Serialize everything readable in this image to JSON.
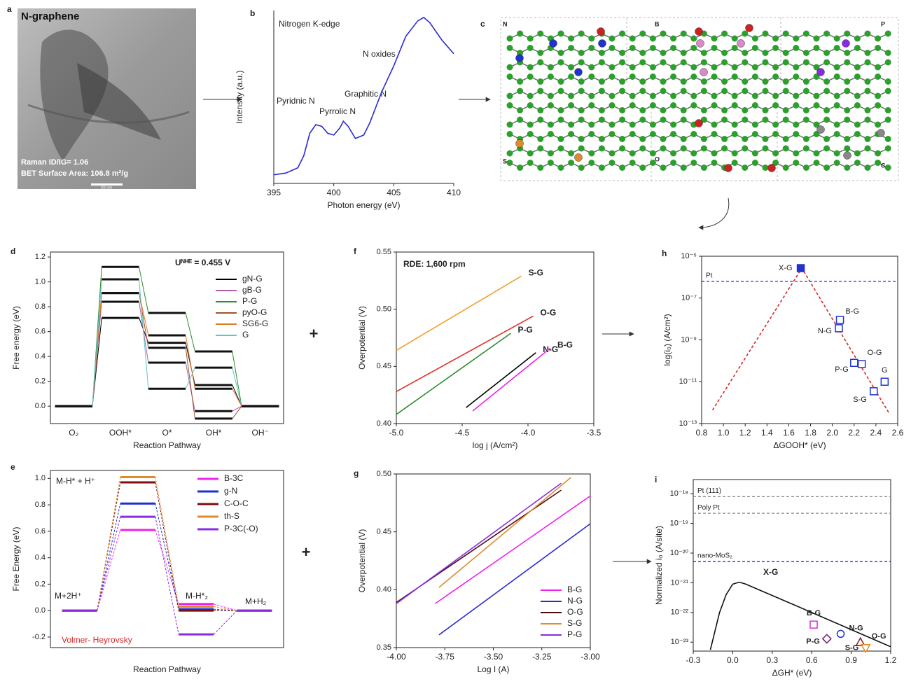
{
  "image_panel": {
    "label": "a",
    "title": "N-graphene",
    "raman": "Raman ID/IG= 1.06",
    "bet": "BET Surface Area: 106.8 m²/g",
    "scale_bar": "200 nm"
  },
  "structure_panel": {
    "label": "c",
    "dopants": [
      "N",
      "B",
      "P",
      "S",
      "O",
      "C"
    ]
  },
  "operators": [
    "+",
    "+"
  ],
  "chart_data": [
    {
      "panel": "b",
      "type": "line",
      "title": "Nitrogen K-edge",
      "x_label": "Photon energy (eV)",
      "y_label": "Intensity (a.u.)",
      "xlim": [
        395,
        410
      ],
      "xticks": [
        395,
        400,
        405,
        410
      ],
      "ylim": [
        0,
        1
      ],
      "series": [
        {
          "color": "#2a2ad4",
          "x": [
            395,
            396,
            397,
            397.5,
            398,
            398.5,
            399,
            399.5,
            400,
            400.5,
            400.8,
            401.2,
            401.8,
            402.5,
            403,
            404,
            405,
            406,
            407,
            407.5,
            408,
            409,
            410
          ],
          "values": [
            0.05,
            0.06,
            0.09,
            0.16,
            0.29,
            0.34,
            0.33,
            0.29,
            0.28,
            0.32,
            0.36,
            0.33,
            0.26,
            0.28,
            0.35,
            0.53,
            0.68,
            0.85,
            0.94,
            0.96,
            0.93,
            0.83,
            0.75
          ]
        }
      ],
      "annotations": [
        "Pyridnic N",
        "Pyrrolic N",
        "Graphitic N",
        "N oxides"
      ]
    },
    {
      "panel": "d",
      "type": "step",
      "title": "Uᴺᴴᴱ = 0.455 V",
      "x_label": "Reaction Pathway",
      "y_label": "Free energy (eV)",
      "categories": [
        "O₂",
        "OOH*",
        "O*",
        "OH*",
        "OH⁻"
      ],
      "ylim": [
        -0.14,
        1.24
      ],
      "yticks": [
        {
          "value": 0,
          "label": "0.0"
        },
        0.2,
        0.4,
        0.6,
        0.8,
        {
          "value": 1,
          "label": "1.0"
        },
        1.2
      ],
      "level_color": "#111111",
      "legend": "upper right",
      "series": [
        {
          "name": "gN-G",
          "color": "#000000",
          "values": [
            0,
            0.71,
            0.51,
            0.17,
            0
          ]
        },
        {
          "name": "gB-G",
          "color": "#b05fb0",
          "values": [
            0,
            0.84,
            0.35,
            -0.04,
            0
          ]
        },
        {
          "name": "P-G",
          "color": "#2e8b2e",
          "values": [
            0,
            1.12,
            0.75,
            0.44,
            0
          ]
        },
        {
          "name": "pyO-G",
          "color": "#a0522d",
          "values": [
            0,
            0.91,
            0.47,
            -0.1,
            0
          ]
        },
        {
          "name": "SG6-G",
          "color": "#e07b20",
          "values": [
            0,
            0.91,
            0.57,
            0.14,
            0
          ]
        },
        {
          "name": "G",
          "color": "#5fc8c8",
          "values": [
            0,
            1.02,
            0.14,
            0.31,
            0
          ]
        }
      ]
    },
    {
      "panel": "e",
      "type": "step",
      "x_label": "Reaction Pathway",
      "y_label": "Free Energy (eV)",
      "categories": [
        "M+2H⁺",
        "M-H* + H⁺",
        "M-H*₂",
        "M+H₂"
      ],
      "ylim": [
        -0.28,
        1.06
      ],
      "yticks": [
        -0.2,
        {
          "value": 0,
          "label": "0.0"
        },
        0.2,
        0.4,
        0.6,
        0.8,
        {
          "value": 1,
          "label": "1.0"
        }
      ],
      "dashed": true,
      "legend": "upper right",
      "annotations": [
        "Volmer- Heyrovsky"
      ],
      "series": [
        {
          "name": "B-3C",
          "color": "#ee22ee",
          "values": [
            0,
            0.61,
            0.05,
            0
          ]
        },
        {
          "name": "g-N",
          "color": "#1a2fd6",
          "values": [
            0,
            0.81,
            0.01,
            0
          ]
        },
        {
          "name": "C-O-C",
          "color": "#7a0f0f",
          "values": [
            0,
            0.97,
            0,
            0
          ]
        },
        {
          "name": "th-S",
          "color": "#e08a30",
          "values": [
            0,
            1.01,
            0.03,
            0
          ]
        },
        {
          "name": "P-3C(-O)",
          "color": "#8a2be2",
          "values": [
            0,
            0.71,
            -0.18,
            0
          ]
        }
      ]
    },
    {
      "panel": "f",
      "type": "line",
      "title": "RDE: 1,600 rpm",
      "x_label": "log j (A/cm²)",
      "y_label": "Overpotential (V)",
      "xlim": [
        -5,
        -3.5
      ],
      "xticks": [
        {
          "value": -5,
          "label": "-5.0"
        },
        -4.5,
        {
          "value": -4,
          "label": "-4.0"
        },
        -3.5
      ],
      "ylim": [
        0.4,
        0.55
      ],
      "yticks": [
        {
          "value": 0.4,
          "label": "0.40"
        },
        0.45,
        {
          "value": 0.5,
          "label": "0.50"
        },
        0.55
      ],
      "direct_labels": true,
      "series": [
        {
          "name": "S-G",
          "color": "#f0a030",
          "x": [
            -5,
            -4.05
          ],
          "values": [
            0.464,
            0.529
          ]
        },
        {
          "name": "O-G",
          "color": "#e0302a",
          "x": [
            -5,
            -3.96
          ],
          "values": [
            0.428,
            0.494
          ]
        },
        {
          "name": "P-G",
          "color": "#2e8b2e",
          "x": [
            -5,
            -4.13
          ],
          "values": [
            0.408,
            0.479
          ]
        },
        {
          "name": "N-G",
          "color": "#000000",
          "x": [
            -4.47,
            -3.94
          ],
          "values": [
            0.414,
            0.462
          ]
        },
        {
          "name": "B-G",
          "color": "#ee22ee",
          "x": [
            -4.42,
            -3.83
          ],
          "values": [
            0.411,
            0.466
          ]
        }
      ]
    },
    {
      "panel": "g",
      "type": "line",
      "x_label": "Log I (A)",
      "y_label": "Overpotential (V)",
      "xlim": [
        -4,
        -3
      ],
      "xticks": [
        {
          "value": -4,
          "label": "-4.00"
        },
        -3.75,
        {
          "value": -3.5,
          "label": "-3.50"
        },
        -3.25,
        {
          "value": -3,
          "label": "-3.00"
        }
      ],
      "ylim": [
        0.35,
        0.5
      ],
      "yticks": [
        0.35,
        {
          "value": 0.4,
          "label": "0.40"
        },
        0.45,
        {
          "value": 0.5,
          "label": "0.50"
        }
      ],
      "legend": "lower right",
      "series": [
        {
          "name": "B-G",
          "color": "#ee22ee",
          "x": [
            -3.8,
            -3
          ],
          "values": [
            0.388,
            0.481
          ]
        },
        {
          "name": "N-G",
          "color": "#2a2ad4",
          "x": [
            -3.78,
            -3
          ],
          "values": [
            0.361,
            0.457
          ]
        },
        {
          "name": "O-G",
          "color": "#4a0f0f",
          "x": [
            -4,
            -3.15
          ],
          "values": [
            0.389,
            0.486
          ]
        },
        {
          "name": "S-G",
          "color": "#e08a30",
          "x": [
            -3.78,
            -3.1
          ],
          "values": [
            0.402,
            0.497
          ]
        },
        {
          "name": "P-G",
          "color": "#8a2be2",
          "x": [
            -4,
            -3.15
          ],
          "values": [
            0.388,
            0.492
          ]
        }
      ]
    },
    {
      "panel": "h",
      "type": "scatter",
      "log_y": true,
      "x_label": "ΔGOOH* (eV)",
      "y_label": "log(i₀) (A/cm²)",
      "xlim": [
        0.8,
        2.6
      ],
      "xticks": [
        0.8,
        {
          "value": 1,
          "label": "1.0"
        },
        1.2,
        1.4,
        1.6,
        1.8,
        {
          "value": 2,
          "label": "2.0"
        },
        2.2,
        2.4,
        2.6
      ],
      "ylim": [
        1e-13,
        1e-05
      ],
      "yticks": [
        {
          "value": 1e-13,
          "label": "10⁻¹³"
        },
        {
          "value": 1e-11,
          "label": "10⁻¹¹"
        },
        {
          "value": 1e-09,
          "label": "10⁻⁹"
        },
        {
          "value": 1e-07,
          "label": "10⁻⁷"
        },
        {
          "value": 1e-05,
          "label": "10⁻⁵"
        }
      ],
      "hlines": [
        {
          "label": "Pt",
          "value": 6.3e-07,
          "color": "#1f2fd6"
        }
      ],
      "curve": {
        "color": "#d62728",
        "dashed": true,
        "x": [
          0.9,
          1.72,
          2.52
        ],
        "values": [
          4.4e-13,
          2.7e-06,
          3.2e-13
        ]
      },
      "points": {
        "labels": [
          "X-G",
          "B-G",
          "N-G",
          "O-G",
          "P-G",
          "G",
          "S-G"
        ],
        "x": [
          1.71,
          2.07,
          2.06,
          2.27,
          2.2,
          2.48,
          2.38
        ],
        "values": [
          2.7e-06,
          9e-09,
          3.6e-09,
          7e-11,
          8e-11,
          1e-11,
          3.5e-12
        ],
        "markers": [
          "square",
          "square",
          "square",
          "square",
          "square",
          "square",
          "square"
        ],
        "colors": [
          "#2233cc",
          "#2233cc",
          "#2233cc",
          "#2233cc",
          "#2233cc",
          "#2233cc",
          "#2233cc"
        ],
        "filled": [
          true,
          false,
          false,
          false,
          false,
          false,
          false
        ]
      }
    },
    {
      "panel": "i",
      "type": "scatter",
      "log_y": true,
      "x_label": "ΔGH* (eV)",
      "y_label": "Normalized i₀ (A/site)",
      "xlim": [
        -0.3,
        1.2
      ],
      "xticks": [
        -0.3,
        {
          "value": 0,
          "label": "0.0"
        },
        0.3,
        0.6,
        0.9,
        1.2
      ],
      "ylim": [
        5e-24,
        3e-18
      ],
      "yticks": [
        {
          "value": 1e-23,
          "label": "10⁻²³"
        },
        {
          "value": 1e-22,
          "label": "10⁻²²"
        },
        {
          "value": 1e-21,
          "label": "10⁻²¹"
        },
        {
          "value": 1e-20,
          "label": "10⁻²⁰"
        },
        {
          "value": 1e-19,
          "label": "10⁻¹⁹"
        },
        {
          "value": 1e-18,
          "label": "10⁻¹⁸"
        }
      ],
      "hlines": [
        {
          "label": "Pt (111)",
          "value": 8e-19,
          "color": "#888888"
        },
        {
          "label": "Poly Pt",
          "value": 2.2e-19,
          "color": "#888888"
        },
        {
          "label": "nano-MoS₂",
          "value": 5.2e-21,
          "color": "#1f2fd6"
        }
      ],
      "curve": {
        "color": "#111111",
        "dashed": false,
        "x": [
          -0.17,
          -0.1,
          -0.05,
          0,
          0.05,
          0.1,
          0.2,
          0.6,
          1,
          1.2
        ],
        "values": [
          5.5e-24,
          1e-22,
          4e-22,
          9e-22,
          1.05e-21,
          9e-22,
          5.8e-22,
          1e-22,
          1.7e-23,
          7e-24
        ]
      },
      "annotations": [
        "X-G"
      ],
      "points": {
        "labels": [
          "B-G",
          "N-G",
          "O-G",
          "P-G",
          "S-G"
        ],
        "x": [
          0.615,
          0.82,
          0.97,
          0.715,
          1.01
        ],
        "values": [
          3.9e-23,
          1.9e-23,
          1e-23,
          1.3e-23,
          6.3e-24
        ],
        "markers": [
          "square",
          "circle",
          "triangle",
          "diamond",
          "triangle-down"
        ],
        "colors": [
          "#d633cc",
          "#2233cc",
          "#8b1a1a",
          "#6a1b6a",
          "#e08a2a"
        ],
        "filled": [
          false,
          false,
          false,
          false,
          false
        ]
      }
    }
  ]
}
